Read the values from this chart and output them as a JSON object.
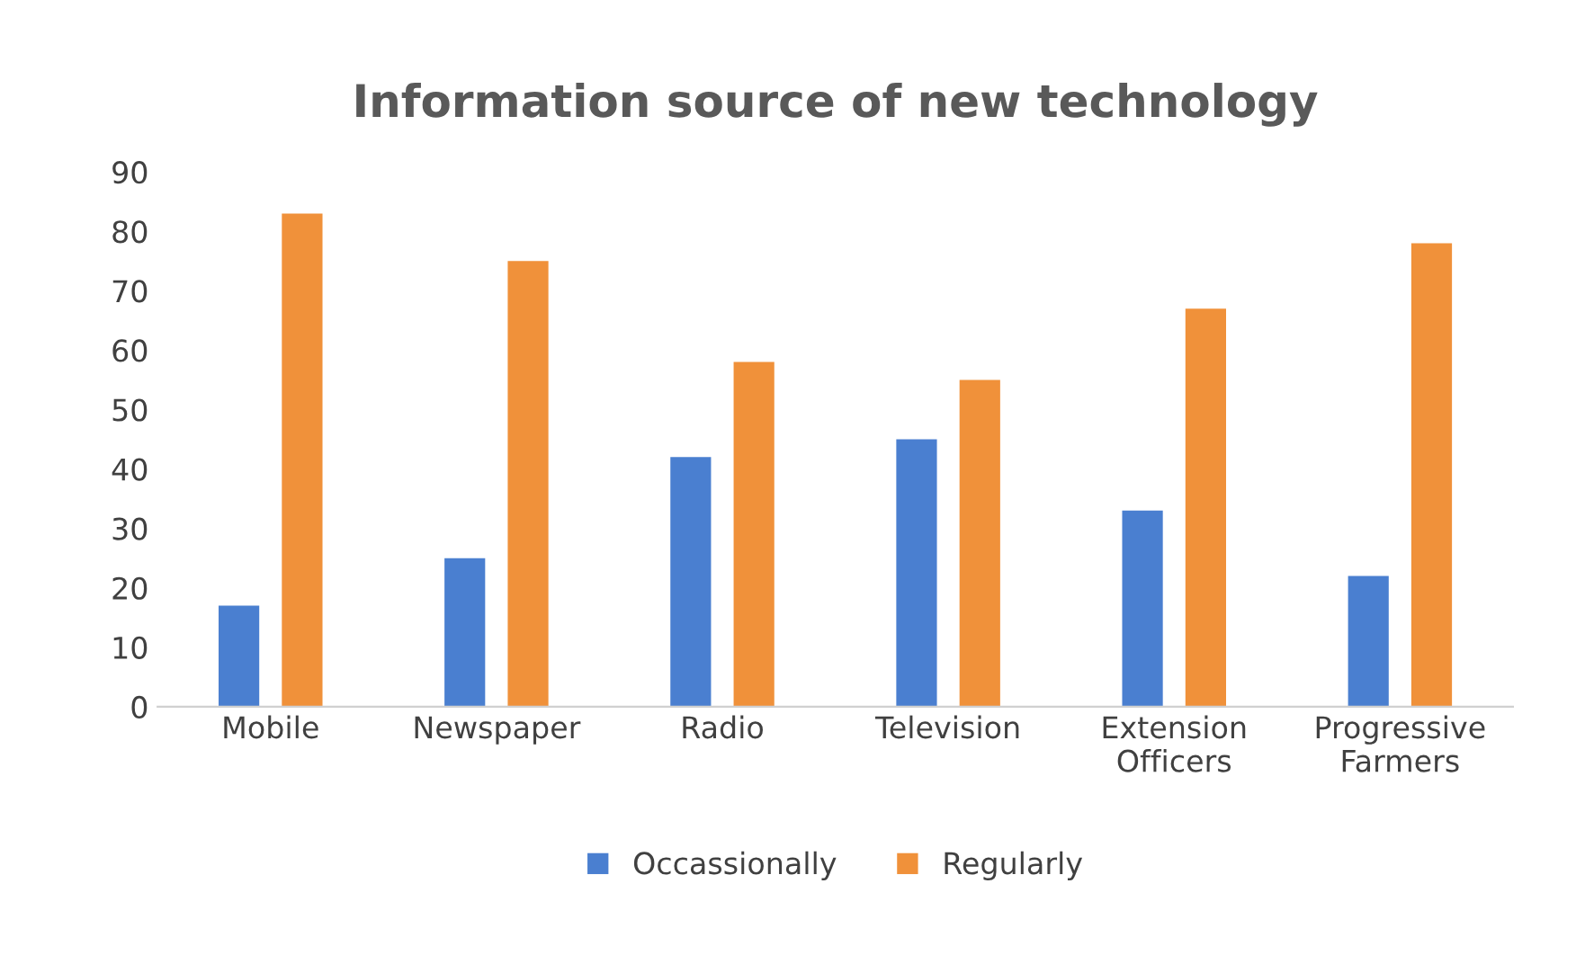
{
  "chart_data": {
    "type": "bar",
    "title": "Information source of new technology",
    "categories": [
      "Mobile",
      "Newspaper",
      "Radio",
      "Television",
      "Extension Officers",
      "Progressive Farmers"
    ],
    "series": [
      {
        "name": "Occassionally",
        "color": "#4a7fd0",
        "values": [
          17,
          25,
          42,
          45,
          33,
          22
        ]
      },
      {
        "name": "Regularly",
        "color": "#f0913a",
        "values": [
          83,
          75,
          58,
          55,
          67,
          78
        ]
      }
    ],
    "ylim": [
      0,
      90
    ],
    "yticks": [
      0,
      10,
      20,
      30,
      40,
      50,
      60,
      70,
      80,
      90
    ],
    "grid": false,
    "legend": "bottom"
  }
}
